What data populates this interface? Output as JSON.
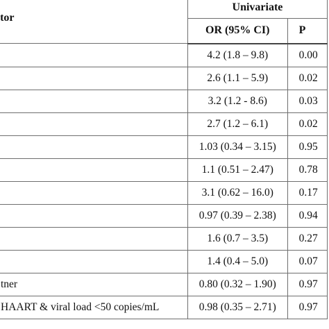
{
  "header": {
    "factor_label": "actor",
    "group_label": "Univariate",
    "or_label": "OR (95% CI)",
    "p_label": "P"
  },
  "rows": [
    {
      "label": "",
      "or": "4.2 (1.8 – 9.8)",
      "p": "0.00"
    },
    {
      "label": "",
      "or": "2.6 (1.1 – 5.9)",
      "p": "0.02"
    },
    {
      "label": "",
      "or": "3.2 (1.2 - 8.6)",
      "p": "0.03"
    },
    {
      "label": "",
      "or": "2.7 (1.2 – 6.1)",
      "p": "0.02"
    },
    {
      "label": "",
      "or": "1.03 (0.34 – 3.15)",
      "p": "0.95"
    },
    {
      "label": "",
      "or": "1.1 (0.51 – 2.47)",
      "p": "0.78"
    },
    {
      "label": "",
      "or": "3.1 (0.62 – 16.0)",
      "p": "0.17"
    },
    {
      "label": "",
      "or": "0.97 (0.39 – 2.38)",
      "p": "0.94"
    },
    {
      "label": "",
      "or": "1.6 (0.7 – 3.5)",
      "p": "0.27"
    },
    {
      "label": "",
      "or": "1.4 (0.4 – 5.0)",
      "p": "0.07"
    },
    {
      "label": "tner",
      "or": "0.80 (0.32 – 1.90)",
      "p": "0.97"
    },
    {
      "label": "HAART & viral load <50 copies/mL",
      "or": "0.98 (0.35 – 2.71)",
      "p": "0.97"
    }
  ]
}
